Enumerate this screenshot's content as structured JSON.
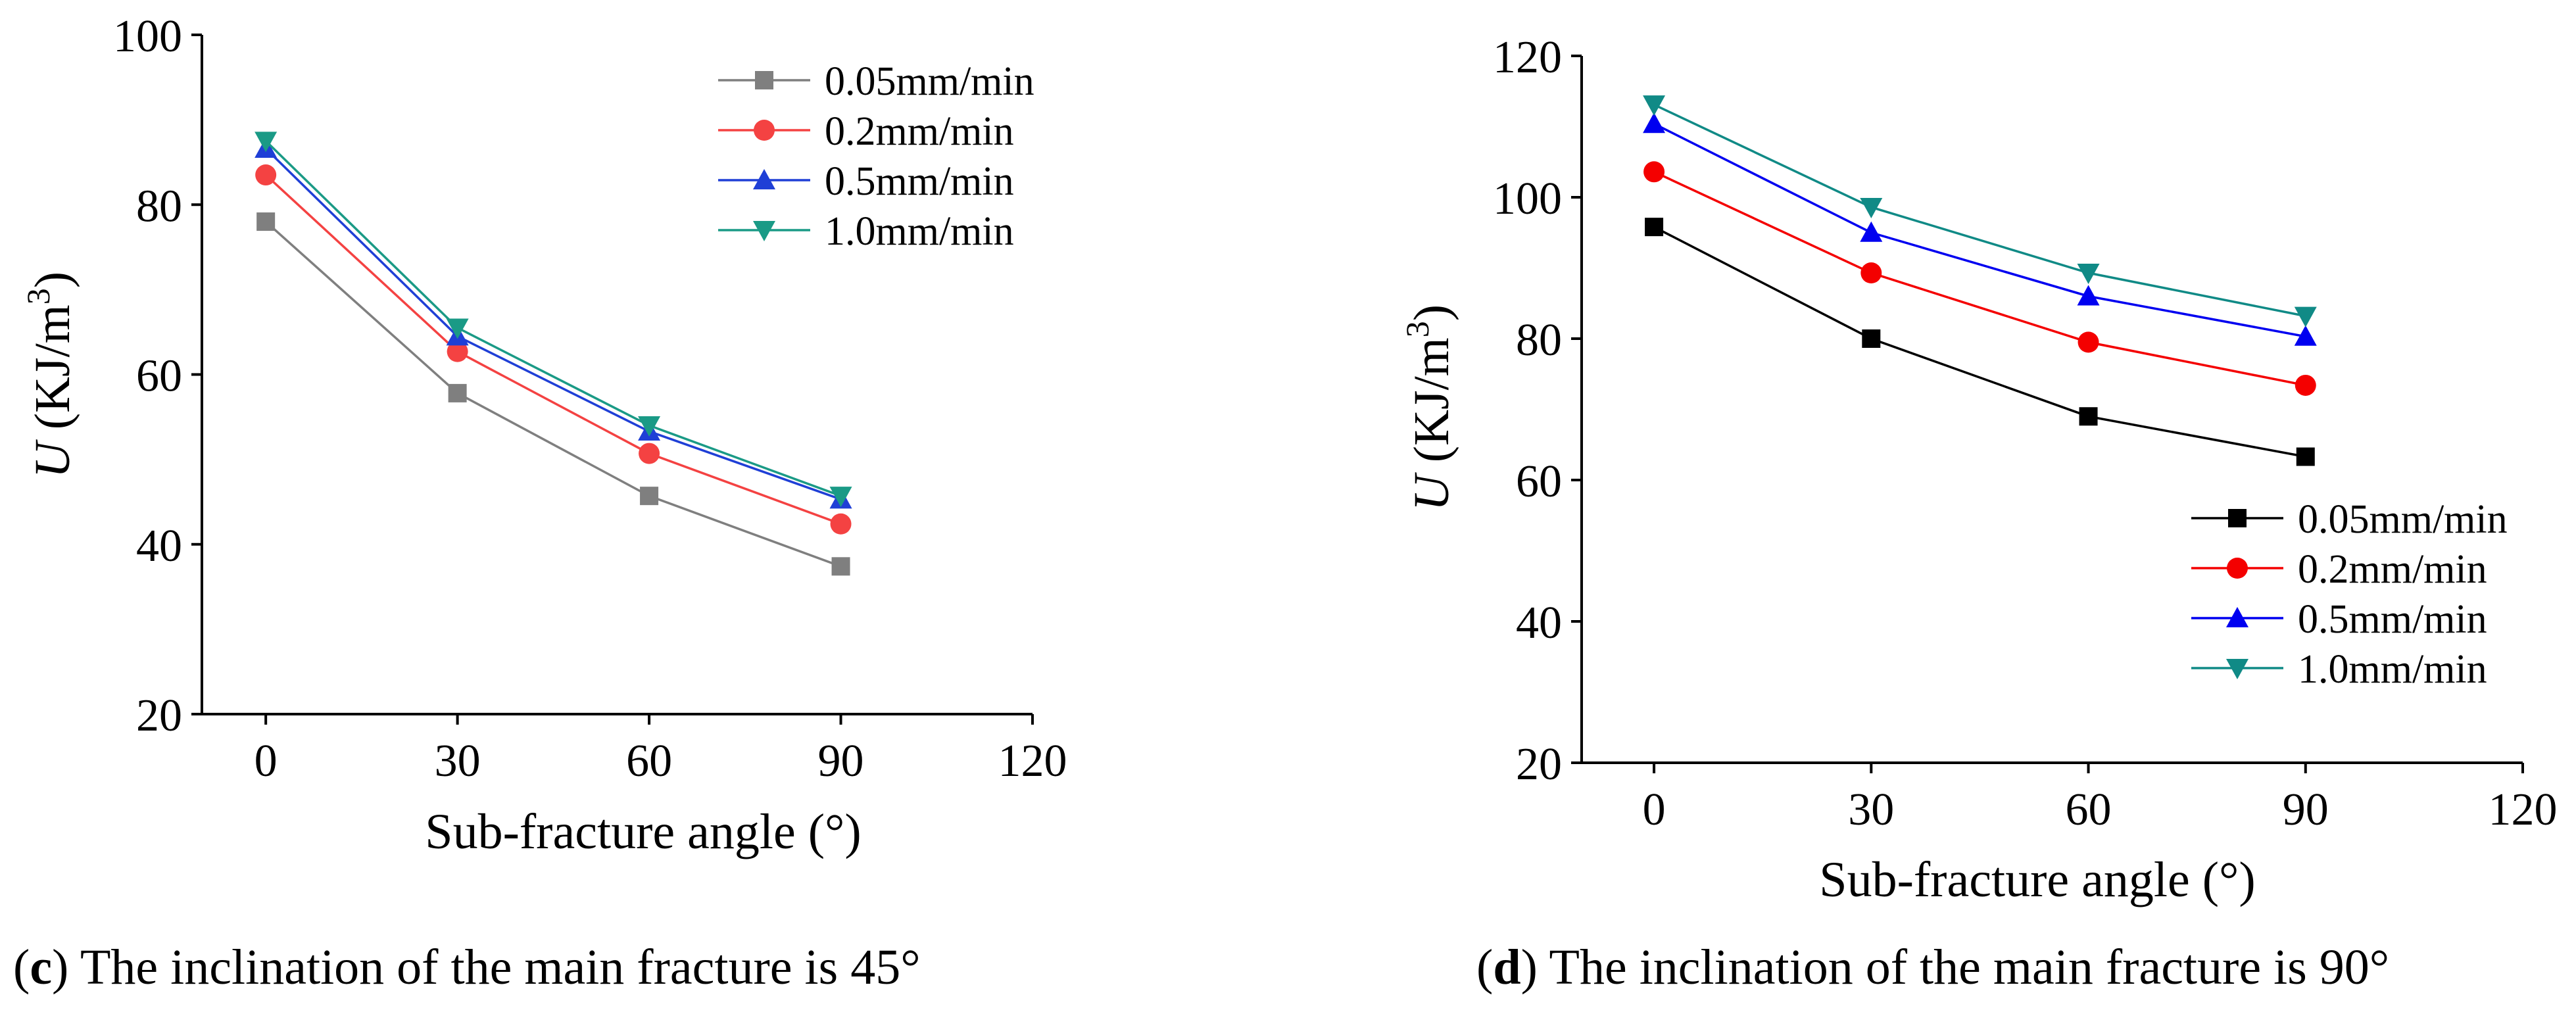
{
  "chart_data": [
    {
      "type": "line",
      "panel_label": "c",
      "caption": " The inclination of the main fracture is 45°",
      "xlabel": "Sub-fracture angle (°)",
      "ylabel_var": "U",
      "ylabel_units": " (KJ/m",
      "ylabel_sup": "3",
      "ylabel_close": ")",
      "xlim": [
        -10,
        120
      ],
      "ylim": [
        20,
        100
      ],
      "xticks": [
        0,
        30,
        60,
        90,
        120
      ],
      "yticks": [
        20,
        40,
        60,
        80,
        100
      ],
      "legend_position": "top-right",
      "x": [
        0,
        30,
        60,
        90
      ],
      "series": [
        {
          "name": "0.05mm/min",
          "color": "#7f7f7f",
          "marker": "square",
          "values": [
            78.0,
            57.8,
            45.7,
            37.4
          ]
        },
        {
          "name": "0.2mm/min",
          "color": "#f44242",
          "marker": "circle",
          "values": [
            83.5,
            62.7,
            50.7,
            42.4
          ]
        },
        {
          "name": "0.5mm/min",
          "color": "#1f3fd6",
          "marker": "triangle-up",
          "values": [
            86.6,
            64.5,
            53.3,
            45.3
          ]
        },
        {
          "name": "1.0mm/min",
          "color": "#1a9a86",
          "marker": "triangle-down",
          "values": [
            87.5,
            65.5,
            54.0,
            45.7
          ]
        }
      ]
    },
    {
      "type": "line",
      "panel_label": "d",
      "caption": " The inclination of the main fracture is 90°",
      "xlabel": "Sub-fracture angle (°)",
      "ylabel_var": "U",
      "ylabel_units": " (KJ/m",
      "ylabel_sup": "3",
      "ylabel_close": ")",
      "xlim": [
        -10,
        120
      ],
      "ylim": [
        20,
        120
      ],
      "xticks": [
        0,
        30,
        60,
        90,
        120
      ],
      "yticks": [
        20,
        40,
        60,
        80,
        100,
        120
      ],
      "legend_position": "bottom-right",
      "x": [
        0,
        30,
        60,
        90
      ],
      "series": [
        {
          "name": "0.05mm/min",
          "color": "#000000",
          "marker": "square",
          "values": [
            95.8,
            80.0,
            69.0,
            63.3
          ]
        },
        {
          "name": "0.2mm/min",
          "color": "#f40000",
          "marker": "circle",
          "values": [
            103.6,
            89.3,
            79.5,
            73.4
          ]
        },
        {
          "name": "0.5mm/min",
          "color": "#0000f0",
          "marker": "triangle-up",
          "values": [
            110.4,
            95.0,
            86.0,
            80.3
          ]
        },
        {
          "name": "1.0mm/min",
          "color": "#108a86",
          "marker": "triangle-down",
          "values": [
            113.1,
            98.6,
            89.3,
            83.2
          ]
        }
      ]
    }
  ]
}
